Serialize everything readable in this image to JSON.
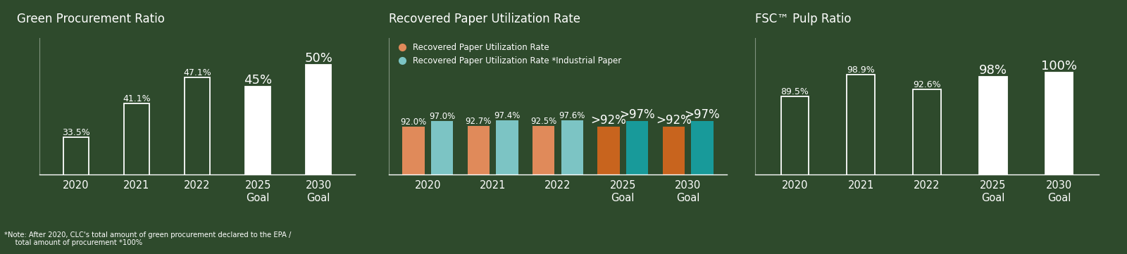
{
  "chart_data": [
    {
      "type": "bar",
      "title": "Green Procurement Ratio",
      "categories": [
        "2020",
        "2021",
        "2022",
        "2025\nGoal",
        "2030\nGoal"
      ],
      "values": [
        33.5,
        41.1,
        47.1,
        45,
        50
      ],
      "value_labels": [
        "33.5%",
        "41.1%",
        "47.1%",
        "45%",
        "50%"
      ],
      "colors": [
        "none",
        "none",
        "none",
        "#ffffff",
        "#ffffff"
      ],
      "ylim": [
        25,
        56
      ],
      "yticks": [],
      "data_labels": true,
      "tick_labels": "x",
      "note": "*Note: After 2020, CLC's total amount of green procurement declared to the EPA /\n     total amount of procurement *100%"
    },
    {
      "type": "bar",
      "title": "Recovered Paper Utilization Rate",
      "categories": [
        "2020",
        "2021",
        "2022",
        "2025\nGoal",
        "2030\nGoal"
      ],
      "series": [
        {
          "name": "Recovered Paper Utilization Rate",
          "color": "#e08a5a",
          "colors": [
            "#e08a5a",
            "#e08a5a",
            "#e08a5a",
            "#c8641e",
            "#c8641e"
          ],
          "values": [
            92.0,
            92.7,
            92.5,
            92,
            92
          ],
          "value_labels": [
            "92.0%",
            "92.7%",
            "92.5%",
            ">92%",
            ">92%"
          ]
        },
        {
          "name": "Recovered Paper Utilization Rate *Industrial Paper",
          "color": "#7cc4c4",
          "colors": [
            "#7cc4c4",
            "#7cc4c4",
            "#7cc4c4",
            "#189a9a",
            "#189a9a"
          ],
          "values": [
            97.0,
            97.4,
            97.6,
            97,
            97
          ],
          "value_labels": [
            "97.0%",
            "97.4%",
            "97.6%",
            ">97%",
            ">97%"
          ]
        }
      ],
      "ylim": [
        50,
        170
      ],
      "yticks": [],
      "data_labels": true,
      "tick_labels": "x",
      "legend": "upper left"
    },
    {
      "type": "bar",
      "title": "FSC™ Pulp Ratio",
      "categories": [
        "2020",
        "2021",
        "2022",
        "2025\nGoal",
        "2030\nGoal"
      ],
      "values": [
        89.5,
        98.9,
        92.6,
        98,
        100
      ],
      "value_labels": [
        "89.5%",
        "98.9%",
        "92.6%",
        "98%",
        "100%"
      ],
      "colors": [
        "none",
        "none",
        "none",
        "#ffffff",
        "#ffffff"
      ],
      "ylim": [
        55,
        115
      ],
      "yticks": [],
      "data_labels": true,
      "tick_labels": "x"
    }
  ]
}
